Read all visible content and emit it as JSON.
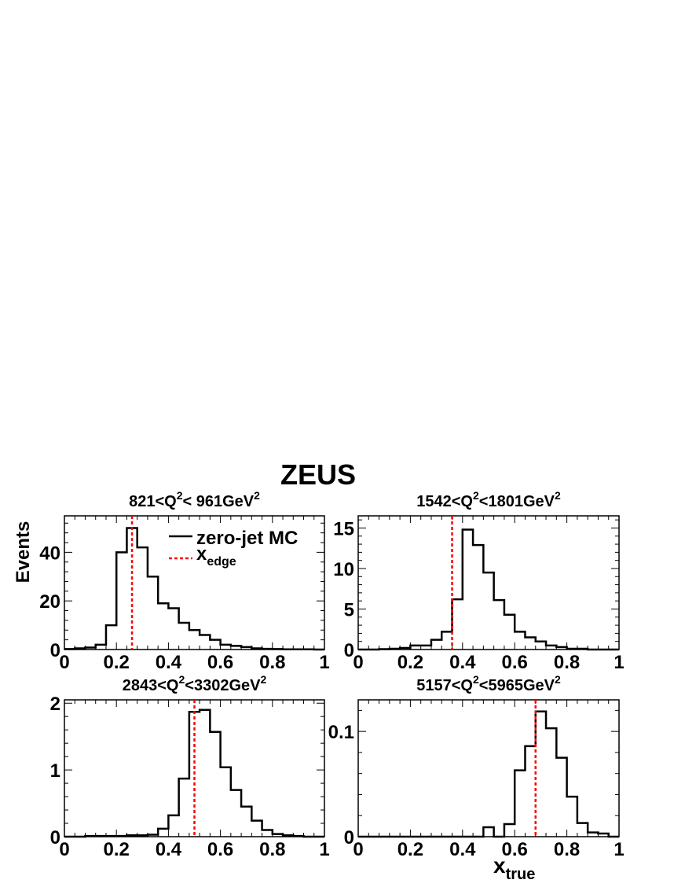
{
  "figure": {
    "title": "ZEUS",
    "ylabel": "Events",
    "xlabel_main": "x",
    "xlabel_sub": "true"
  },
  "legend": {
    "items": [
      {
        "label": "zero-jet MC",
        "label_sub": "",
        "style": "solid",
        "color": "#000000"
      },
      {
        "label": "x",
        "label_sub": "edge",
        "style": "dashed",
        "color": "#ff0000"
      }
    ]
  },
  "colors": {
    "histogram": "#000000",
    "edge": "#ff0000",
    "axes": "#000000"
  },
  "chart_data": [
    {
      "type": "bar",
      "title_parts": [
        "821<Q",
        "2",
        "< 961GeV",
        "2"
      ],
      "xlim": [
        0,
        1
      ],
      "ylim": [
        0,
        55
      ],
      "x_ticks": [
        0,
        0.2,
        0.4,
        0.6,
        0.8,
        1
      ],
      "x_tick_labels": [
        "0",
        "0.2",
        "0.4",
        "0.6",
        "0.8",
        "1"
      ],
      "y_ticks": [
        0,
        20,
        40
      ],
      "y_tick_labels": [
        "0",
        "20",
        "40"
      ],
      "bin_width": 0.04,
      "bin_start": 0,
      "values": [
        0.2,
        0.5,
        0.8,
        2,
        10,
        40,
        50,
        42,
        30,
        19,
        17,
        11,
        8,
        6,
        4,
        2,
        1.5,
        1,
        0.5,
        0.3,
        0.2,
        0.1,
        0.1,
        0.1,
        0
      ],
      "x_edge": 0.26,
      "show_legend": true
    },
    {
      "type": "bar",
      "title_parts": [
        "1542<Q",
        "2",
        "<1801GeV",
        "2"
      ],
      "xlim": [
        0,
        1
      ],
      "ylim": [
        0,
        16.5
      ],
      "x_ticks": [
        0,
        0.2,
        0.4,
        0.6,
        0.8,
        1
      ],
      "x_tick_labels": [
        "0",
        "0.2",
        "0.4",
        "0.6",
        "0.8",
        "1"
      ],
      "y_ticks": [
        0,
        5,
        10,
        15
      ],
      "y_tick_labels": [
        "0",
        "5",
        "10",
        "15"
      ],
      "bin_width": 0.04,
      "bin_start": 0,
      "values": [
        0,
        0,
        0.05,
        0.1,
        0.2,
        0.5,
        0.5,
        1.2,
        2.2,
        6.2,
        14.8,
        12.9,
        9.5,
        6.1,
        4.3,
        2.2,
        1.5,
        1.0,
        0.5,
        0.3,
        0.1,
        0.1,
        0,
        0,
        0
      ],
      "x_edge": 0.36,
      "show_legend": false
    },
    {
      "type": "bar",
      "title_parts": [
        "2843<Q",
        "2",
        "<3302GeV",
        "2"
      ],
      "xlim": [
        0,
        1
      ],
      "ylim": [
        0,
        2.05
      ],
      "x_ticks": [
        0,
        0.2,
        0.4,
        0.6,
        0.8,
        1
      ],
      "x_tick_labels": [
        "0",
        "0.2",
        "0.4",
        "0.6",
        "0.8",
        "1"
      ],
      "y_ticks": [
        0,
        1,
        2
      ],
      "y_tick_labels": [
        "0",
        "1",
        "2"
      ],
      "bin_width": 0.04,
      "bin_start": 0,
      "values": [
        0,
        0,
        0.01,
        0.01,
        0.01,
        0.01,
        0.02,
        0.02,
        0.03,
        0.12,
        0.32,
        0.87,
        1.87,
        1.9,
        1.57,
        1.04,
        0.7,
        0.45,
        0.24,
        0.1,
        0.04,
        0.02,
        0.01,
        0,
        0
      ],
      "x_edge": 0.5,
      "show_legend": false
    },
    {
      "type": "bar",
      "title_parts": [
        "5157<Q",
        "2",
        "<5965GeV",
        "2"
      ],
      "xlim": [
        0,
        1
      ],
      "ylim": [
        0,
        0.13
      ],
      "x_ticks": [
        0,
        0.2,
        0.4,
        0.6,
        0.8,
        1
      ],
      "x_tick_labels": [
        "0",
        "0.2",
        "0.4",
        "0.6",
        "0.8",
        "1"
      ],
      "y_ticks": [
        0,
        0.1
      ],
      "y_tick_labels": [
        "0",
        "0.1"
      ],
      "bin_width": 0.04,
      "bin_start": 0,
      "values": [
        0,
        0,
        0,
        0,
        0,
        0,
        0,
        0,
        0,
        0,
        0,
        0,
        0.009,
        0,
        0.012,
        0.063,
        0.086,
        0.119,
        0.103,
        0.075,
        0.038,
        0.013,
        0.004,
        0.003,
        0
      ],
      "x_edge": 0.68,
      "show_legend": false
    }
  ]
}
